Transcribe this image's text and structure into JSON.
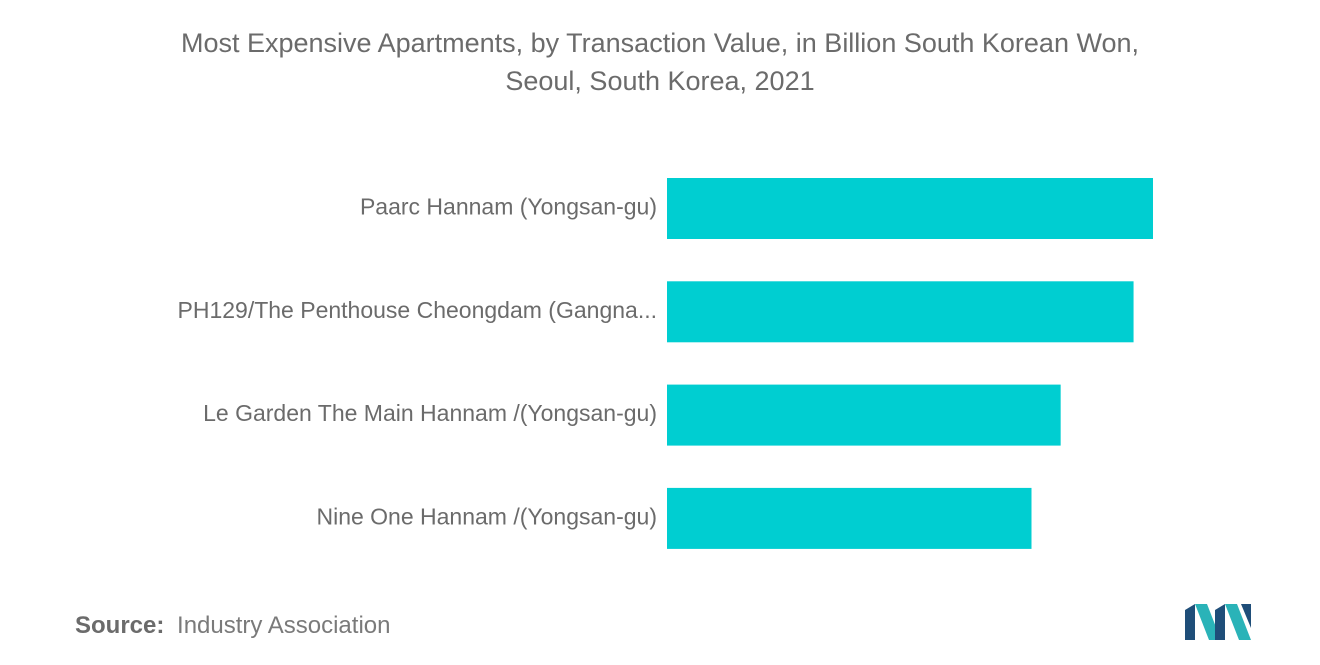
{
  "chart_data": {
    "type": "bar",
    "orientation": "horizontal",
    "title_lines": [
      "Most Expensive Apartments, by Transaction Value, in Billion South Korean Won,",
      "Seoul, South Korea, 2021"
    ],
    "categories": [
      "Paarc Hannam (Yongsan-gu)",
      "PH129/The Penthouse Cheongdam (Gangna...",
      "Le Garden The Main Hannam /(Yongsan-gu)",
      "Nine One Hannam /(Yongsan-gu)"
    ],
    "values": [
      100,
      96,
      81,
      75
    ],
    "xlim": [
      0,
      100
    ],
    "grid": false,
    "legend": "none",
    "bar_color": "#00CED1"
  },
  "source": {
    "label": "Source:",
    "value": "Industry Association"
  },
  "colors": {
    "text": "#6b6b6b",
    "bar": "#00CED1",
    "logo_dark": "#1f4e79",
    "logo_teal": "#2ab3b8"
  }
}
